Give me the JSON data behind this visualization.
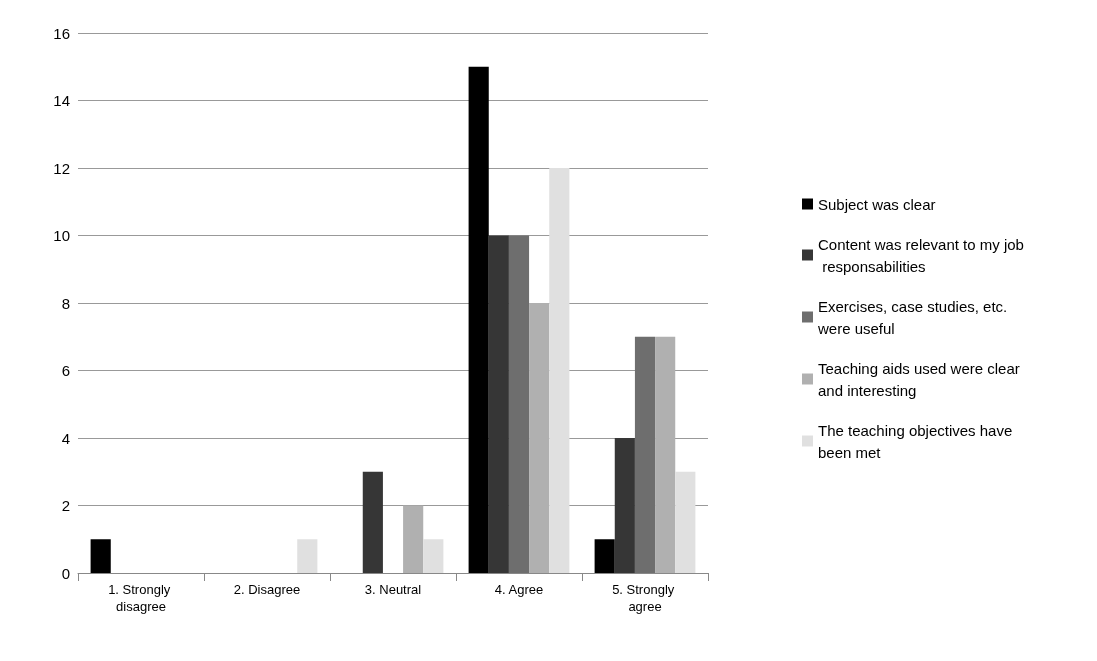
{
  "chart_data": {
    "type": "bar",
    "categories": [
      "1. Strongly disagree",
      "2. Disagree",
      "3. Neutral",
      "4. Agree",
      "5. Strongly agree"
    ],
    "series": [
      {
        "name": "Subject was clear",
        "color": "#000000",
        "values": [
          1,
          0,
          0,
          15,
          1
        ]
      },
      {
        "name": "Content was relevant to my job responsabilities",
        "color": "#363636",
        "values": [
          0,
          0,
          3,
          10,
          4
        ]
      },
      {
        "name": "Exercises, case studies, etc. were useful",
        "color": "#6e6e6e",
        "values": [
          0,
          0,
          0,
          10,
          7
        ]
      },
      {
        "name": "Teaching aids used were clear and interesting",
        "color": "#b0b0b0",
        "values": [
          0,
          0,
          2,
          8,
          7
        ]
      },
      {
        "name": "The teaching objectives have been met",
        "color": "#e0e0e0",
        "values": [
          0,
          1,
          1,
          12,
          3
        ]
      }
    ],
    "ylim": [
      0,
      16
    ],
    "yticks": [
      0,
      2,
      4,
      6,
      8,
      10,
      12,
      14,
      16
    ],
    "grid": "y",
    "legend": "right"
  }
}
